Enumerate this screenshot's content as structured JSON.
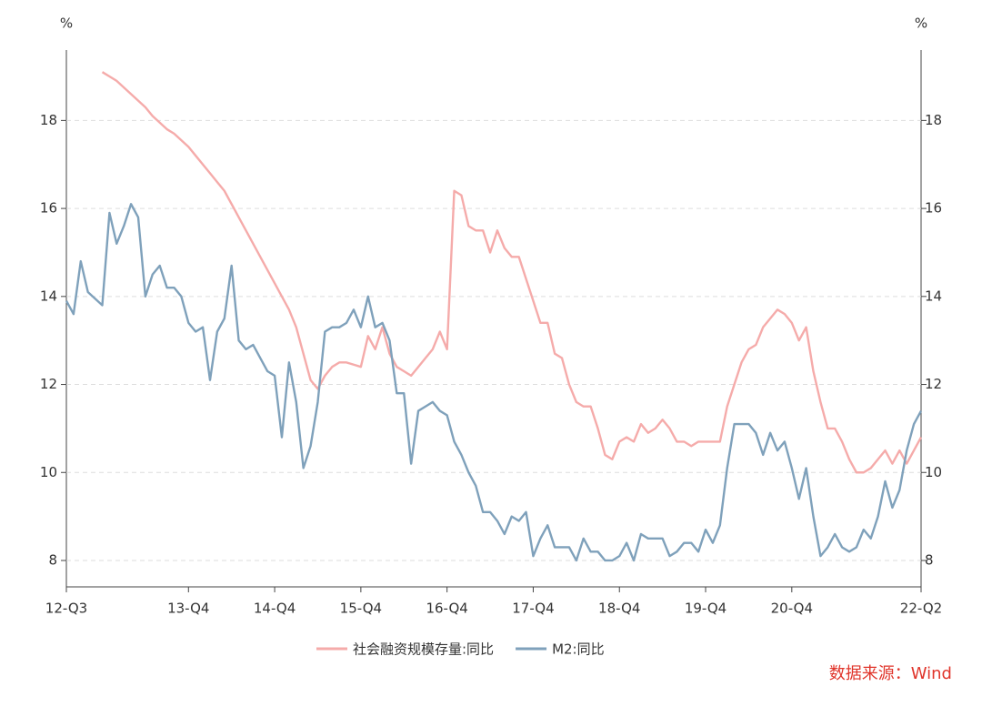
{
  "chart_data": {
    "type": "line",
    "ylabel": "%",
    "y2label": "%",
    "source": "数据来源：Wind",
    "categories": [
      "12-Q3",
      null,
      null,
      null,
      null,
      null,
      null,
      null,
      null,
      null,
      null,
      null,
      null,
      null,
      null,
      null,
      null,
      "13-Q4",
      null,
      null,
      null,
      null,
      null,
      null,
      null,
      null,
      null,
      null,
      null,
      "14-Q4",
      null,
      null,
      null,
      null,
      null,
      null,
      null,
      null,
      null,
      null,
      null,
      "15-Q4",
      null,
      null,
      null,
      null,
      null,
      null,
      null,
      null,
      null,
      null,
      null,
      "16-Q4",
      null,
      null,
      null,
      null,
      null,
      null,
      null,
      null,
      null,
      null,
      null,
      "17-Q4",
      null,
      null,
      null,
      null,
      null,
      null,
      null,
      null,
      null,
      null,
      null,
      "18-Q4",
      null,
      null,
      null,
      null,
      null,
      null,
      null,
      null,
      null,
      null,
      null,
      "19-Q4",
      null,
      null,
      null,
      null,
      null,
      null,
      null,
      null,
      null,
      null,
      null,
      "20-Q4",
      null,
      null,
      null,
      null,
      null,
      null,
      null,
      null,
      null,
      null,
      null,
      null,
      null,
      null,
      null,
      null,
      null,
      "22-Q2"
    ],
    "series": [
      {
        "name": "社会融资规模存量:同比",
        "color": "#f5abaa",
        "values": [
          null,
          null,
          null,
          null,
          null,
          19.1,
          19.0,
          18.9,
          18.75,
          18.6,
          18.45,
          18.3,
          18.1,
          17.95,
          17.8,
          17.7,
          17.55,
          17.4,
          17.2,
          17.0,
          16.8,
          16.6,
          16.4,
          16.1,
          15.8,
          15.5,
          15.2,
          14.9,
          14.6,
          14.3,
          14.0,
          13.7,
          13.3,
          12.7,
          12.1,
          11.9,
          12.2,
          12.4,
          12.5,
          12.5,
          12.45,
          12.4,
          13.1,
          12.8,
          13.3,
          12.7,
          12.4,
          12.3,
          12.2,
          12.4,
          12.6,
          12.8,
          13.2,
          12.8,
          16.4,
          16.3,
          15.6,
          15.5,
          15.5,
          15.0,
          15.5,
          15.1,
          14.9,
          14.9,
          14.4,
          13.9,
          13.4,
          13.4,
          12.7,
          12.6,
          12.0,
          11.6,
          11.5,
          11.5,
          11.0,
          10.4,
          10.3,
          10.7,
          10.8,
          10.7,
          11.1,
          10.9,
          11.0,
          11.2,
          11.0,
          10.7,
          10.7,
          10.6,
          10.7,
          10.7,
          10.7,
          10.7,
          11.5,
          12.0,
          12.5,
          12.8,
          12.9,
          13.3,
          13.5,
          13.7,
          13.6,
          13.4,
          13.0,
          13.3,
          12.3,
          11.6,
          11.0,
          11.0,
          10.7,
          10.3,
          10.0,
          10.0,
          10.1,
          10.3,
          10.5,
          10.2,
          10.5,
          10.2,
          10.5,
          10.8
        ]
      },
      {
        "name": "M2:同比",
        "color": "#7fa1bb",
        "axis": "y2",
        "values": [
          13.9,
          13.6,
          14.8,
          14.1,
          13.95,
          13.8,
          15.9,
          15.2,
          15.6,
          16.1,
          15.8,
          14.0,
          14.5,
          14.7,
          14.2,
          14.2,
          14.0,
          13.4,
          13.2,
          13.3,
          12.1,
          13.2,
          13.5,
          14.7,
          13.0,
          12.8,
          12.9,
          12.6,
          12.3,
          12.2,
          10.8,
          12.5,
          11.6,
          10.1,
          10.6,
          11.6,
          13.2,
          13.3,
          13.3,
          13.4,
          13.7,
          13.3,
          14.0,
          13.3,
          13.4,
          13.0,
          11.8,
          11.8,
          10.2,
          11.4,
          11.5,
          11.6,
          11.4,
          11.3,
          10.7,
          10.4,
          10.0,
          9.7,
          9.1,
          9.1,
          8.9,
          8.6,
          9.0,
          8.9,
          9.1,
          8.1,
          8.5,
          8.8,
          8.3,
          8.3,
          8.3,
          8.0,
          8.5,
          8.2,
          8.2,
          8.0,
          8.0,
          8.1,
          8.4,
          8.0,
          8.6,
          8.5,
          8.5,
          8.5,
          8.1,
          8.2,
          8.4,
          8.4,
          8.2,
          8.7,
          8.4,
          8.8,
          10.1,
          11.1,
          11.1,
          11.1,
          10.9,
          10.4,
          10.9,
          10.5,
          10.7,
          10.1,
          9.4,
          10.1,
          9.0,
          8.1,
          8.3,
          8.6,
          8.3,
          8.2,
          8.3,
          8.7,
          8.5,
          9.0,
          9.8,
          9.2,
          9.6,
          10.5,
          11.1,
          11.4
        ]
      }
    ],
    "ylim": [
      7.4,
      19.6
    ],
    "yticks": [
      8,
      10,
      12,
      14,
      16,
      18
    ],
    "y2lim": [
      7.4,
      19.6
    ],
    "y2ticks": [
      8,
      10,
      12,
      14,
      16,
      18
    ],
    "grid": true,
    "legend": "bottom"
  }
}
